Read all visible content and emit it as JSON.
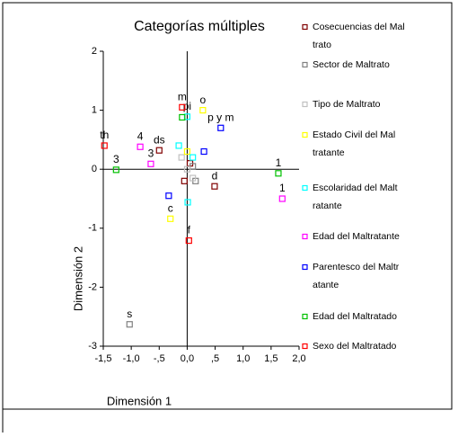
{
  "chart_data": {
    "type": "scatter",
    "title": "Categorías múltiples",
    "xlabel": "Dimensión 1",
    "ylabel": "Dimensión 2",
    "xlim": [
      -1.5,
      2.0
    ],
    "ylim": [
      -3,
      2
    ],
    "xticks": [
      {
        "value": -1.5,
        "label": "-1,5"
      },
      {
        "value": -1.0,
        "label": "-1,0"
      },
      {
        "value": -0.5,
        "label": "-,5"
      },
      {
        "value": 0.0,
        "label": "0,0"
      },
      {
        "value": 0.5,
        "label": ",5"
      },
      {
        "value": 1.0,
        "label": "1,0"
      },
      {
        "value": 1.5,
        "label": "1,5"
      },
      {
        "value": 2.0,
        "label": "2,0"
      }
    ],
    "yticks": [
      2,
      1,
      0,
      -1,
      -2,
      -3
    ],
    "series": [
      {
        "name": "Cosecuencias del Maltrato",
        "color": "#800000",
        "x": [
          -0.5,
          0.49,
          0.05,
          -0.05
        ],
        "y": [
          0.32,
          -0.29,
          0.1,
          -0.2
        ],
        "labels": [
          "ds",
          "d",
          null,
          null
        ]
      },
      {
        "name": "Sector de Maltrato",
        "color": "#808080",
        "x": [
          -1.03,
          0.15,
          0.1
        ],
        "y": [
          -2.63,
          -0.2,
          0.05
        ],
        "labels": [
          "s",
          null,
          null
        ]
      },
      {
        "name": "Tipo de Maltrato",
        "color": "#c0c0c0",
        "x": [
          0.0,
          0.1,
          -0.1
        ],
        "y": [
          0.0,
          -0.15,
          0.2
        ],
        "labels": [
          null,
          null,
          null
        ]
      },
      {
        "name": "Estado Civil del Maltratante",
        "color": "#ffff00",
        "x": [
          0.28,
          -0.3,
          0.0
        ],
        "y": [
          1.0,
          -0.84,
          0.3
        ],
        "labels": [
          "o",
          "c",
          null
        ]
      },
      {
        "name": "Escolaridad del Maltratante",
        "color": "#00ffff",
        "x": [
          0.0,
          0.01,
          -0.15,
          0.1
        ],
        "y": [
          0.89,
          -0.56,
          0.4,
          0.2
        ],
        "labels": [
          "pi",
          null,
          null,
          null
        ]
      },
      {
        "name": "Edad del Maltratante",
        "color": "#ff00ff",
        "x": [
          -0.84,
          -0.65,
          1.7
        ],
        "y": [
          0.38,
          0.09,
          -0.5
        ],
        "labels": [
          "4",
          "3",
          "1"
        ]
      },
      {
        "name": "Parentesco del Maltratante",
        "color": "#0000ff",
        "x": [
          0.6,
          -0.33,
          0.3
        ],
        "y": [
          0.7,
          -0.45,
          0.3
        ],
        "labels": [
          "p y m",
          null,
          null
        ]
      },
      {
        "name": "Edad del Maltratado",
        "color": "#00c000",
        "x": [
          -1.27,
          1.63,
          -0.09
        ],
        "y": [
          -0.01,
          -0.07,
          0.88
        ],
        "labels": [
          "3",
          "1",
          null
        ]
      },
      {
        "name": "Sexo del Maltratado",
        "color": "#ff0000",
        "x": [
          -1.48,
          -0.09,
          0.03
        ],
        "y": [
          0.4,
          1.05,
          -1.21
        ],
        "labels": [
          "th",
          "m",
          "f"
        ]
      }
    ]
  }
}
